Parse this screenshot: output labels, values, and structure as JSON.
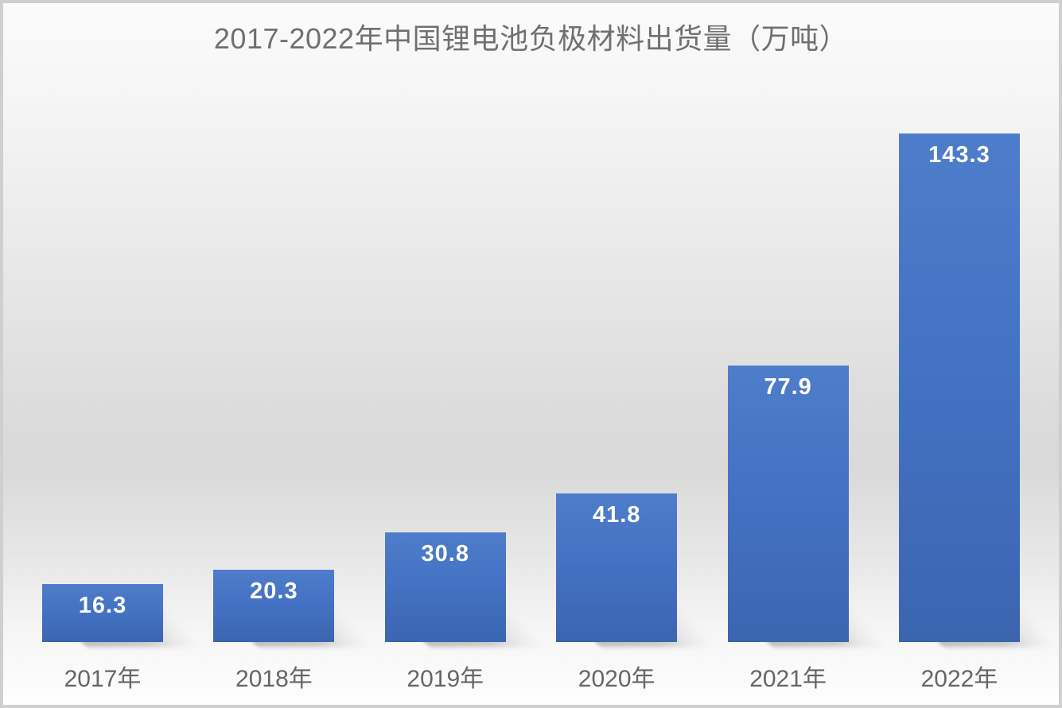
{
  "chart_data": {
    "type": "bar",
    "title": "2017-2022年中国锂电池负极材料出货量（万吨）",
    "categories": [
      "2017年",
      "2018年",
      "2019年",
      "2020年",
      "2021年",
      "2022年"
    ],
    "values": [
      16.3,
      20.3,
      30.8,
      41.8,
      77.9,
      143.3
    ],
    "unit": "万吨",
    "xlabel": "",
    "ylabel": "",
    "ylim": [
      0,
      143.3
    ],
    "grid": false,
    "legend": false,
    "data_label_position": "inside-end",
    "colors": {
      "bar": "#4472C4",
      "bar_label": "#FFFFFF",
      "title": "#707070",
      "axis_label": "#666666",
      "background_top": "#FBFBFB",
      "background_mid": "#D9D9D9",
      "background_bottom": "#FEFEFE",
      "border": "#CFCFCF"
    }
  }
}
